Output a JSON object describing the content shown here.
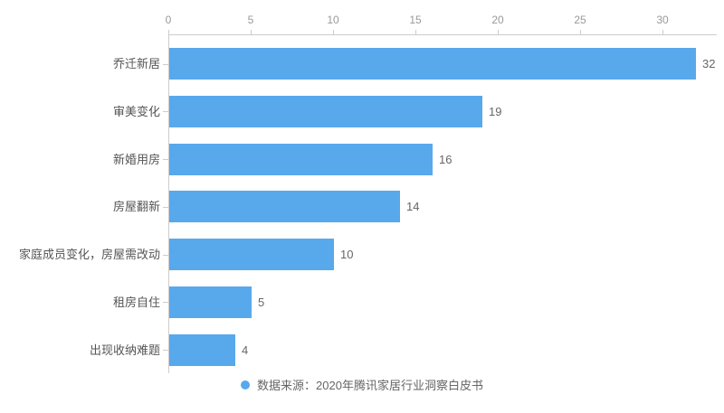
{
  "chart_data": {
    "type": "bar",
    "orientation": "horizontal",
    "title": "",
    "xlabel": "",
    "ylabel": "",
    "categories": [
      "乔迁新居",
      "审美变化",
      "新婚用房",
      "房屋翻新",
      "家庭成员变化，房屋需改动",
      "租房自住",
      "出现收纳难题"
    ],
    "values": [
      32,
      19,
      16,
      14,
      10,
      5,
      4
    ],
    "x_ticks": [
      0,
      5,
      10,
      15,
      20,
      25,
      30
    ],
    "xlim": [
      0,
      33.3
    ],
    "grid": false,
    "value_labels_shown": true,
    "legend_position": "bottom"
  },
  "legend": {
    "marker": "circle",
    "text": "数据来源：2020年腾讯家居行业洞察白皮书"
  },
  "colors": {
    "bar": "#58A8EC",
    "axis_line": "#cccccc",
    "tick_label": "#999999",
    "category_label": "#555555",
    "value_label": "#666666",
    "legend_text": "#666666",
    "background": "#ffffff"
  }
}
